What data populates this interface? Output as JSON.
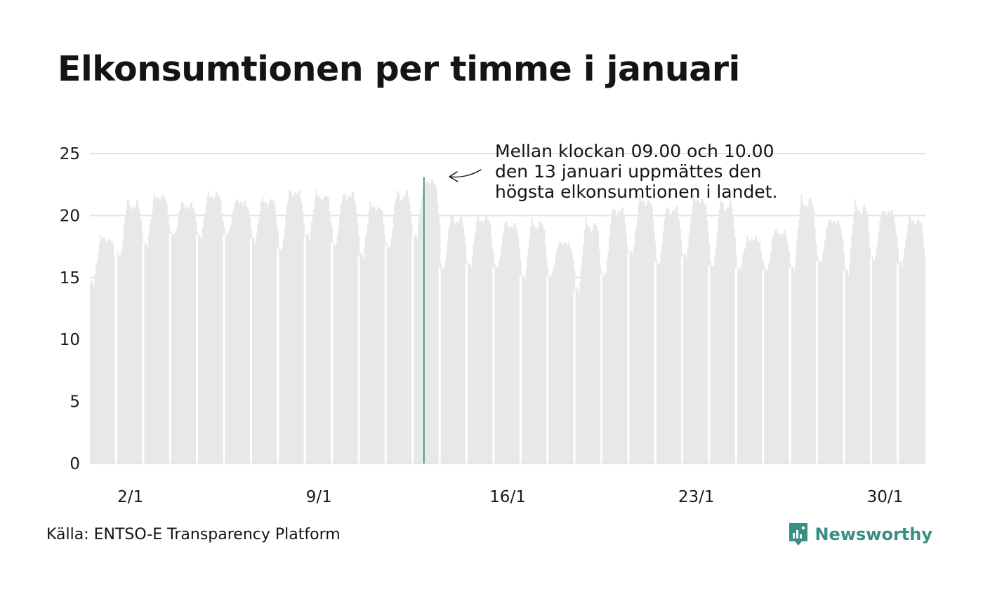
{
  "title": "Elkonsumtionen per timme i januari",
  "source": "Källa: ENTSO-E Transparency Platform",
  "brand": {
    "name": "Newsworthy",
    "icon": "newsworthy-logo-icon",
    "color": "#3a8f85"
  },
  "colors": {
    "bars": "#e8e8e8",
    "highlight": "#1f8f7f",
    "grid": "#e2e2e2",
    "text": "#141414"
  },
  "chart_data": {
    "type": "bar",
    "title": "Elkonsumtionen per timme i januari",
    "xlabel": "",
    "ylabel": "",
    "ylim": [
      0,
      25
    ],
    "yticks": [
      "0",
      "5",
      "10",
      "15",
      "20",
      "25"
    ],
    "xticks": [
      "2/1",
      "9/1",
      "16/1",
      "23/1",
      "30/1"
    ],
    "grid": true,
    "legend": "none",
    "x_unit": "hour of January",
    "hours": 744,
    "daily_min": [
      14.4,
      16.8,
      17.6,
      18.4,
      18.3,
      18.4,
      18.0,
      17.2,
      18.2,
      17.7,
      16.6,
      17.5,
      18.2,
      15.7,
      16.0,
      15.7,
      15.0,
      15.0,
      13.8,
      15.2,
      16.8,
      16.2,
      16.6,
      15.9,
      15.7,
      15.5,
      15.7,
      16.2,
      15.4,
      16.5,
      16.0
    ],
    "daily_max": [
      18.4,
      21.2,
      21.8,
      21.0,
      21.9,
      21.3,
      21.4,
      22.2,
      21.8,
      21.9,
      21.0,
      22.0,
      23.1,
      20.0,
      20.0,
      19.5,
      19.6,
      18.0,
      19.6,
      20.8,
      21.5,
      20.8,
      21.6,
      21.2,
      18.3,
      18.9,
      21.5,
      19.8,
      21.0,
      20.6,
      19.9
    ],
    "highlight": {
      "day": 13,
      "hour": "09.00-10.00",
      "value": 23.1
    },
    "annotation": [
      "Mellan klockan 09.00 och 10.00",
      "den 13 januari uppmättes den",
      "högsta elkonsumtionen i landet."
    ]
  }
}
